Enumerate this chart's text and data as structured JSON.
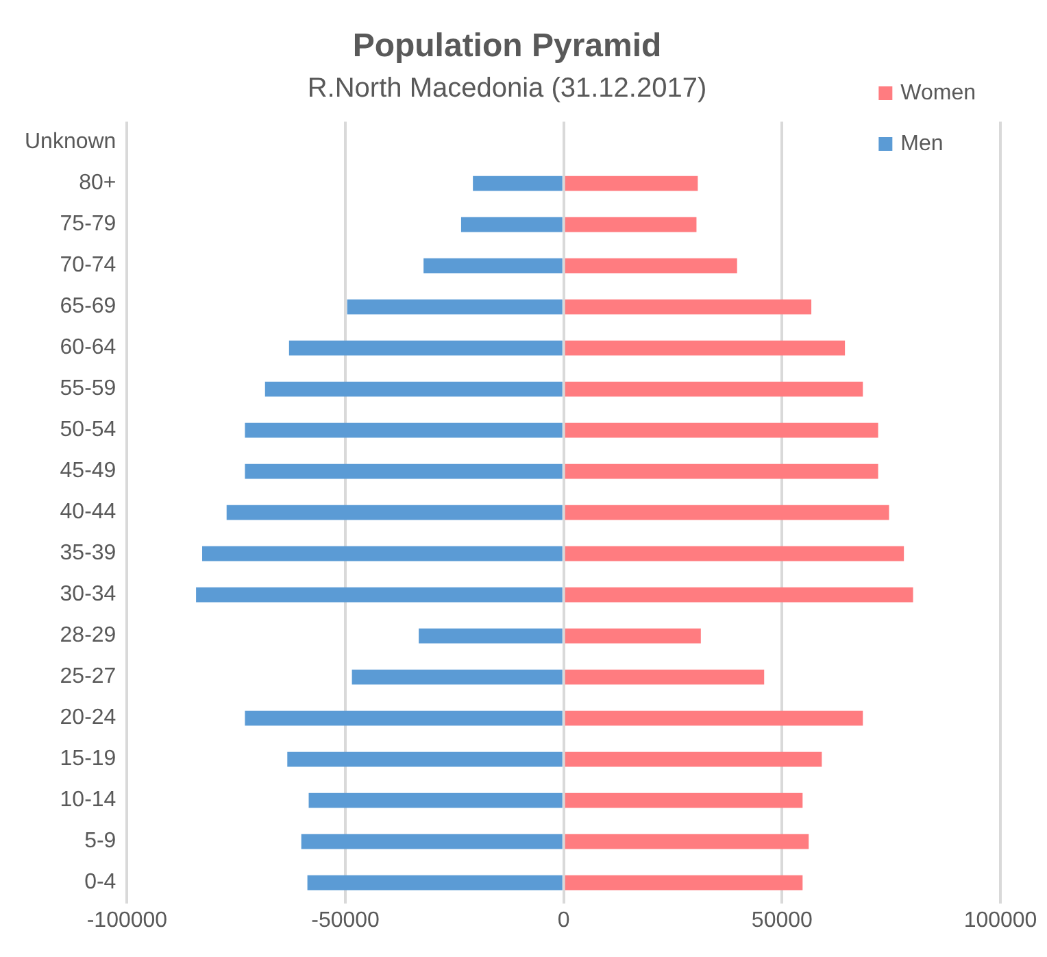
{
  "chart_data": {
    "type": "bar",
    "orientation": "horizontal",
    "stacked": true,
    "title": "Population Pyramid",
    "subtitle": "R.North Macedonia (31.12.2017)",
    "categories": [
      "Unknown",
      "80+",
      "75-79",
      "70-74",
      "65-69",
      "60-64",
      "55-59",
      "50-54",
      "45-49",
      "40-44",
      "35-39",
      "30-34",
      "28-29",
      "25-27",
      "20-24",
      "15-19",
      "10-14",
      "5-9",
      "0-4"
    ],
    "series": [
      {
        "name": "Women",
        "color": "#ff7c80",
        "values": [
          null,
          30700,
          30400,
          39700,
          56700,
          64400,
          68500,
          72000,
          72000,
          74500,
          77900,
          80000,
          31400,
          45900,
          68500,
          59100,
          54700,
          56100,
          54700
        ]
      },
      {
        "name": "Men",
        "color": "#5b9bd5",
        "values": [
          null,
          -20800,
          -23500,
          -32100,
          -49600,
          -62900,
          -68400,
          -73000,
          -73000,
          -77200,
          -82800,
          -84200,
          -33200,
          -48500,
          -73000,
          -63300,
          -58400,
          -60100,
          -58700
        ]
      }
    ],
    "xlim": [
      -100000,
      100000
    ],
    "xticks": [
      -100000,
      -50000,
      0,
      50000,
      100000
    ],
    "grid": "x",
    "legend": "top right"
  }
}
